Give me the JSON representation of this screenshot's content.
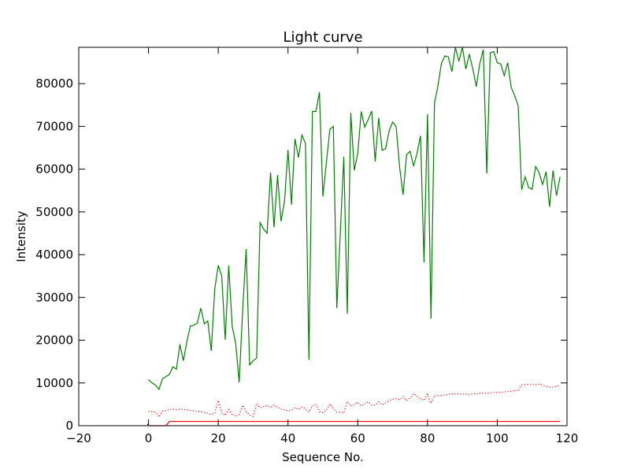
{
  "chart_data": {
    "type": "line",
    "title": "Light curve",
    "xlabel": "Sequence No.",
    "ylabel": "Intensity",
    "xlim": [
      -20,
      120
    ],
    "ylim": [
      0,
      88500
    ],
    "x_ticks": [
      -20,
      0,
      20,
      40,
      60,
      80,
      100,
      120
    ],
    "y_ticks": [
      0,
      10000,
      20000,
      30000,
      40000,
      50000,
      60000,
      70000,
      80000
    ],
    "grid": false,
    "colors": {
      "green": "#008000",
      "red": "#ff0000",
      "blue": "#0000ff"
    },
    "series": [
      {
        "color": "#008000",
        "style": "solid",
        "x": [
          0,
          1,
          2,
          3,
          4,
          5,
          6,
          7,
          8,
          9,
          10,
          11,
          12,
          13,
          14,
          15,
          16,
          17,
          18,
          19,
          20,
          21,
          22,
          23,
          24,
          25,
          26,
          27,
          28,
          29,
          30,
          31,
          32,
          33,
          34,
          35,
          36,
          37,
          38,
          39,
          40,
          41,
          42,
          43,
          44,
          45,
          46,
          47,
          48,
          49,
          50,
          51,
          52,
          53,
          54,
          55,
          56,
          57,
          58,
          59,
          60,
          61,
          62,
          63,
          64,
          65,
          66,
          67,
          68,
          69,
          70,
          71,
          72,
          73,
          74,
          75,
          76,
          77,
          78,
          79,
          80,
          81,
          82,
          83,
          84,
          85,
          86,
          87,
          88,
          89,
          90,
          91,
          92,
          93,
          94,
          95,
          96,
          97,
          98,
          99,
          100,
          101,
          102,
          103,
          104,
          105,
          106,
          107,
          108,
          109,
          110,
          111,
          112,
          113,
          114,
          115,
          116,
          117,
          118
        ],
        "y": [
          10800,
          10000,
          9500,
          8500,
          11000,
          11500,
          12000,
          13800,
          13200,
          19000,
          15200,
          19700,
          23300,
          23500,
          24000,
          27500,
          23800,
          24500,
          17500,
          32000,
          37500,
          35000,
          20100,
          37500,
          23200,
          19300,
          10100,
          27000,
          41300,
          14200,
          15200,
          15800,
          47500,
          46000,
          45000,
          59200,
          46400,
          58600,
          47800,
          52500,
          64500,
          51700,
          67100,
          62700,
          68000,
          66000,
          15400,
          73500,
          73500,
          78000,
          53600,
          61500,
          69300,
          70000,
          27500,
          45200,
          62900,
          26200,
          73200,
          59700,
          63700,
          73500,
          69800,
          71600,
          73600,
          61800,
          72000,
          64400,
          64800,
          69000,
          71000,
          70000,
          60500,
          54000,
          63400,
          64200,
          60700,
          63700,
          67800,
          38200,
          72900,
          25000,
          75500,
          79500,
          84800,
          86500,
          86200,
          82800,
          88500,
          85200,
          88500,
          83400,
          86900,
          83400,
          79300,
          84700,
          88000,
          59000,
          87200,
          87500,
          84900,
          84600,
          81900,
          84900,
          79100,
          77200,
          74800,
          55200,
          58200,
          55700,
          55300,
          60600,
          59200,
          56400,
          59400,
          51200,
          59700,
          53800,
          58200
        ]
      },
      {
        "color": "#ff0000",
        "style": "dotted",
        "x": [
          0,
          1,
          2,
          3,
          4,
          5,
          6,
          7,
          8,
          9,
          10,
          11,
          12,
          13,
          14,
          15,
          16,
          17,
          18,
          19,
          20,
          21,
          22,
          23,
          24,
          25,
          26,
          27,
          28,
          29,
          30,
          31,
          32,
          33,
          34,
          35,
          36,
          37,
          38,
          39,
          40,
          41,
          42,
          43,
          44,
          45,
          46,
          47,
          48,
          49,
          50,
          51,
          52,
          53,
          54,
          55,
          56,
          57,
          58,
          59,
          60,
          61,
          62,
          63,
          64,
          65,
          66,
          67,
          68,
          69,
          70,
          71,
          72,
          73,
          74,
          75,
          76,
          77,
          78,
          79,
          80,
          81,
          82,
          83,
          84,
          85,
          86,
          87,
          88,
          89,
          90,
          91,
          92,
          93,
          94,
          95,
          96,
          97,
          98,
          99,
          100,
          101,
          102,
          103,
          104,
          105,
          106,
          107,
          108,
          109,
          110,
          111,
          112,
          113,
          114,
          115,
          116,
          117,
          118
        ],
        "y": [
          3300,
          3300,
          3200,
          2000,
          3400,
          3600,
          3800,
          3900,
          3700,
          3900,
          3800,
          3700,
          3600,
          3500,
          3400,
          3300,
          3100,
          2900,
          2600,
          3000,
          5900,
          3000,
          2400,
          3800,
          2600,
          2200,
          2500,
          4800,
          3300,
          2500,
          2200,
          5200,
          4200,
          4500,
          4700,
          4300,
          4800,
          4300,
          3900,
          3700,
          3500,
          3600,
          4200,
          3800,
          4400,
          4000,
          3200,
          4600,
          5000,
          3300,
          3000,
          3700,
          5100,
          4000,
          3200,
          3100,
          3000,
          5700,
          4600,
          5000,
          5500,
          4600,
          5200,
          5600,
          4800,
          4800,
          5600,
          4900,
          5300,
          5900,
          6200,
          6300,
          6100,
          6800,
          5900,
          6400,
          7500,
          6900,
          6200,
          6000,
          7400,
          5200,
          7000,
          7000,
          7100,
          7200,
          7300,
          7500,
          7400,
          7500,
          7300,
          7400,
          7200,
          7500,
          7400,
          7600,
          7700,
          7500,
          7700,
          7800,
          7800,
          7800,
          7900,
          8000,
          8100,
          8200,
          8200,
          9500,
          9600,
          9700,
          9600,
          9600,
          9700,
          9500,
          9200,
          9000,
          9000,
          9200,
          9500
        ]
      },
      {
        "color": "#ff0000",
        "style": "solid",
        "x": [
          0,
          5,
          6,
          118
        ],
        "y": [
          0,
          0,
          1000,
          1000
        ]
      },
      {
        "color": "#0000ff",
        "style": "solid",
        "x": [
          -0.4,
          0
        ],
        "y": [
          300,
          300
        ]
      }
    ]
  }
}
